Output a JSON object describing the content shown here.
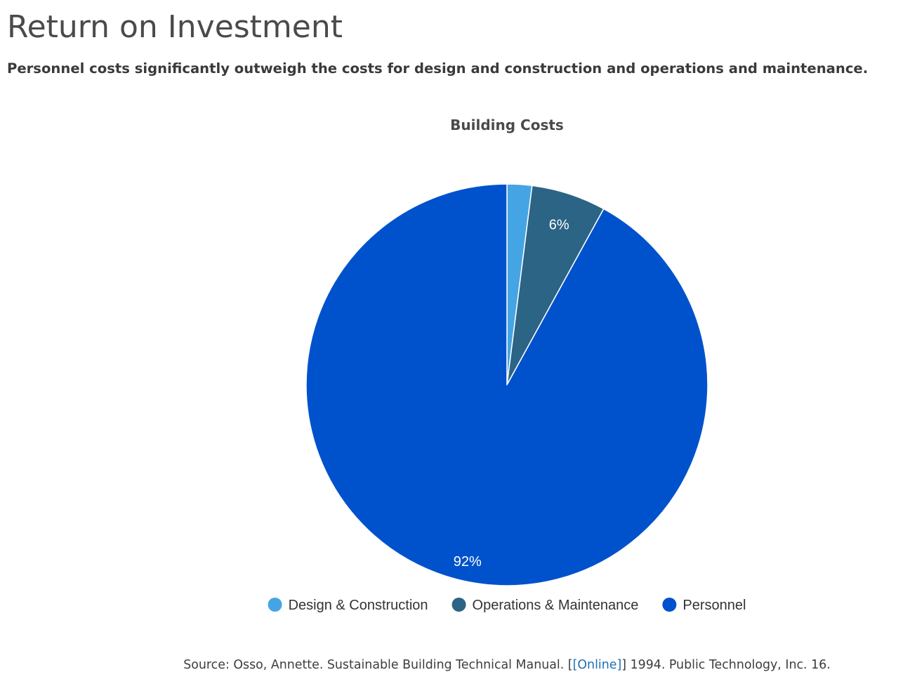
{
  "page": {
    "title": "Return on Investment",
    "subtitle": "Personnel costs significantly outweigh the costs for design and construction and operations and maintenance."
  },
  "chart_data": {
    "type": "pie",
    "title": "Building Costs",
    "categories": [
      "Design & Construction",
      "Operations & Maintenance",
      "Personnel"
    ],
    "values": [
      2,
      6,
      92
    ],
    "value_unit": "%",
    "data_labels": [
      "",
      "6%",
      "92%"
    ],
    "colors": [
      "#45a5e4",
      "#2b6485",
      "#0052cc"
    ],
    "slice_border_color": "#ffffff",
    "start_angle": "12 o'clock",
    "direction": "clockwise",
    "legend": {
      "placement": "bottom-center",
      "marker": "circle"
    }
  },
  "source": {
    "prefix": "Source: Osso, Annette. Sustainable Building Technical Manual. [",
    "link_label": "[Online]",
    "suffix": "] 1994. Public Technology, Inc. 16."
  }
}
